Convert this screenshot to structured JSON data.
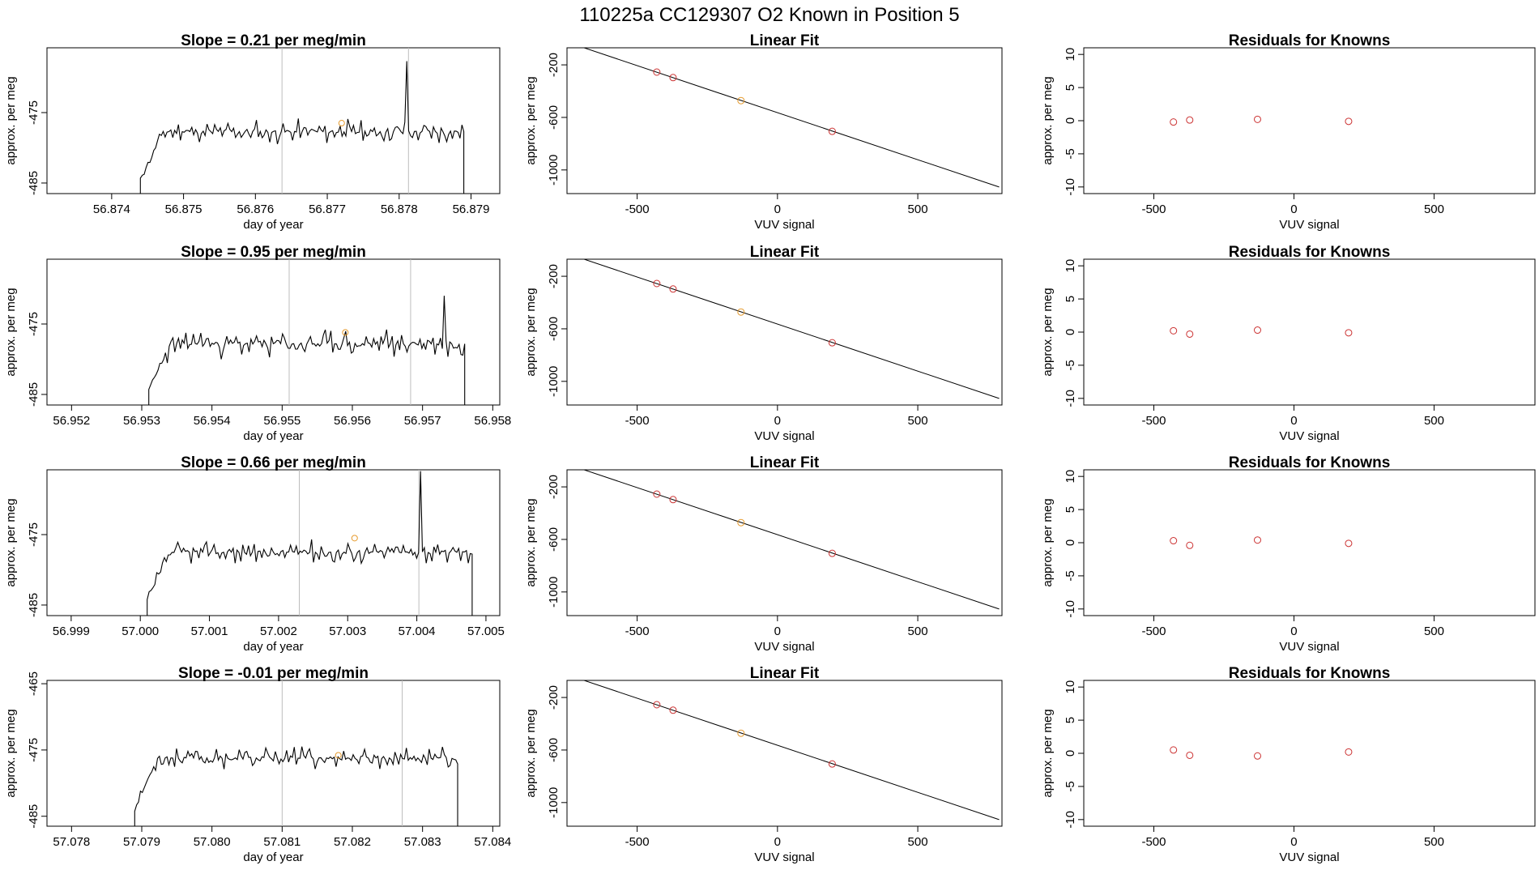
{
  "page_title": "110225a      CC129307    O2 Known in Position  5",
  "colors": {
    "line": "#000000",
    "guide": "#bdbdbd",
    "known": "#cc3333",
    "sample": "#e69b2e"
  },
  "chart_data": [
    {
      "type": "line",
      "panel": "drift",
      "row": 1,
      "title": "Slope =  0.21  per meg/min",
      "xlabel": "day of year",
      "ylabel": "approx. per meg",
      "xlim": [
        56.8731,
        56.8794
      ],
      "ylim": [
        -486.5,
        -465.8
      ],
      "xticks": [
        56.874,
        56.875,
        56.876,
        56.877,
        56.878,
        56.879
      ],
      "xtick_labels": [
        "56.874",
        "56.875",
        "56.876",
        "56.877",
        "56.878",
        "56.879"
      ],
      "yticks": [
        -485,
        -475
      ],
      "ytick_labels": [
        "-485",
        "-475"
      ],
      "x_range": [
        56.8744,
        56.8789
      ],
      "y_base": -477.7,
      "y_amp": 1.6,
      "seed": 11,
      "spikes": [
        [
          56.8781,
          -467.7
        ]
      ],
      "guides_x": [
        56.87637,
        56.87813
      ],
      "highlight": {
        "x": 56.8772,
        "y": -476.5
      }
    },
    {
      "type": "scatter",
      "panel": "fit",
      "row": 1,
      "title": "Linear Fit",
      "xlabel": "VUV signal",
      "ylabel": "approx. per meg",
      "xlim": [
        -750,
        800
      ],
      "ylim": [
        -1180,
        -70
      ],
      "xticks": [
        -500,
        0,
        500
      ],
      "xtick_labels": [
        "-500",
        "0",
        "500"
      ],
      "yticks": [
        -1000,
        -600,
        -200
      ],
      "ytick_labels": [
        "-1000",
        "-600",
        "-200"
      ],
      "line": {
        "x": [
          -745,
          790
        ],
        "y": [
          -30,
          -1130
        ]
      },
      "points": [
        {
          "x": -430,
          "y": -255,
          "kind": "known"
        },
        {
          "x": -372,
          "y": -297,
          "kind": "known"
        },
        {
          "x": -130,
          "y": -472,
          "kind": "sample"
        },
        {
          "x": 195,
          "y": -706,
          "kind": "known"
        }
      ]
    },
    {
      "type": "scatter",
      "panel": "residuals",
      "row": 1,
      "title": "Residuals for Knowns",
      "xlabel": "VUV signal",
      "ylabel": "approx. per meg",
      "xlim": [
        -750,
        860
      ],
      "ylim": [
        -11,
        11
      ],
      "xticks": [
        -500,
        0,
        500
      ],
      "xtick_labels": [
        "-500",
        "0",
        "500"
      ],
      "yticks": [
        -10,
        -5,
        0,
        5,
        10
      ],
      "ytick_labels": [
        "-10",
        "-5",
        "0",
        "5",
        "10"
      ],
      "points": [
        {
          "x": -430,
          "y": -0.2
        },
        {
          "x": -372,
          "y": 0.1
        },
        {
          "x": -130,
          "y": 0.2
        },
        {
          "x": 195,
          "y": -0.1
        }
      ]
    },
    {
      "type": "line",
      "panel": "drift",
      "row": 2,
      "title": "Slope =  0.95  per meg/min",
      "xlabel": "day of year",
      "ylabel": "approx. per meg",
      "xlim": [
        56.95165,
        56.9581
      ],
      "ylim": [
        -486.5,
        -465.8
      ],
      "xticks": [
        56.952,
        56.953,
        56.954,
        56.955,
        56.956,
        56.957,
        56.958
      ],
      "xtick_labels": [
        "56.952",
        "56.953",
        "56.954",
        "56.955",
        "56.956",
        "56.957",
        "56.958"
      ],
      "yticks": [
        -485,
        -475
      ],
      "ytick_labels": [
        "-485",
        "-475"
      ],
      "x_range": [
        56.9531,
        56.9576
      ],
      "y_base": -477.8,
      "y_amp": 1.9,
      "seed": 23,
      "spikes": [
        [
          56.9573,
          -471.0
        ]
      ],
      "guides_x": [
        56.9551,
        56.95683
      ],
      "highlight": {
        "x": 56.9559,
        "y": -476.2
      }
    },
    {
      "type": "scatter",
      "panel": "fit",
      "row": 2,
      "title": "Linear Fit",
      "xlabel": "VUV signal",
      "ylabel": "approx. per meg",
      "xlim": [
        -750,
        800
      ],
      "ylim": [
        -1180,
        -70
      ],
      "xticks": [
        -500,
        0,
        500
      ],
      "xtick_labels": [
        "-500",
        "0",
        "500"
      ],
      "yticks": [
        -1000,
        -600,
        -200
      ],
      "ytick_labels": [
        "-1000",
        "-600",
        "-200"
      ],
      "line": {
        "x": [
          -745,
          790
        ],
        "y": [
          -30,
          -1130
        ]
      },
      "points": [
        {
          "x": -430,
          "y": -255,
          "kind": "known"
        },
        {
          "x": -372,
          "y": -297,
          "kind": "known"
        },
        {
          "x": -130,
          "y": -472,
          "kind": "sample"
        },
        {
          "x": 195,
          "y": -706,
          "kind": "known"
        }
      ]
    },
    {
      "type": "scatter",
      "panel": "residuals",
      "row": 2,
      "title": "Residuals for Knowns",
      "xlabel": "VUV signal",
      "ylabel": "approx. per meg",
      "xlim": [
        -750,
        860
      ],
      "ylim": [
        -11,
        11
      ],
      "xticks": [
        -500,
        0,
        500
      ],
      "xtick_labels": [
        "-500",
        "0",
        "500"
      ],
      "yticks": [
        -10,
        -5,
        0,
        5,
        10
      ],
      "ytick_labels": [
        "-10",
        "-5",
        "0",
        "5",
        "10"
      ],
      "points": [
        {
          "x": -430,
          "y": 0.2
        },
        {
          "x": -372,
          "y": -0.3
        },
        {
          "x": -130,
          "y": 0.3
        },
        {
          "x": 195,
          "y": -0.1
        }
      ]
    },
    {
      "type": "line",
      "panel": "drift",
      "row": 3,
      "title": "Slope =  0.66  per meg/min",
      "xlabel": "day of year",
      "ylabel": "approx. per meg",
      "xlim": [
        56.99865,
        57.0052
      ],
      "ylim": [
        -486.5,
        -465.8
      ],
      "xticks": [
        56.999,
        57.0,
        57.001,
        57.002,
        57.003,
        57.004,
        57.005
      ],
      "xtick_labels": [
        "56.999",
        "57.000",
        "57.001",
        "57.002",
        "57.003",
        "57.004",
        "57.005"
      ],
      "yticks": [
        -485,
        -475
      ],
      "ytick_labels": [
        "-485",
        "-475"
      ],
      "x_range": [
        57.0001,
        57.0048
      ],
      "y_base": -477.5,
      "y_amp": 1.7,
      "seed": 37,
      "spikes": [
        [
          57.00405,
          -466.0
        ]
      ],
      "guides_x": [
        57.0023,
        57.00403
      ],
      "highlight": {
        "x": 57.0031,
        "y": -475.5
      }
    },
    {
      "type": "scatter",
      "panel": "fit",
      "row": 3,
      "title": "Linear Fit",
      "xlabel": "VUV signal",
      "ylabel": "approx. per meg",
      "xlim": [
        -750,
        800
      ],
      "ylim": [
        -1180,
        -70
      ],
      "xticks": [
        -500,
        0,
        500
      ],
      "xtick_labels": [
        "-500",
        "0",
        "500"
      ],
      "yticks": [
        -1000,
        -600,
        -200
      ],
      "ytick_labels": [
        "-1000",
        "-600",
        "-200"
      ],
      "line": {
        "x": [
          -745,
          790
        ],
        "y": [
          -30,
          -1130
        ]
      },
      "points": [
        {
          "x": -430,
          "y": -255,
          "kind": "known"
        },
        {
          "x": -372,
          "y": -297,
          "kind": "known"
        },
        {
          "x": -130,
          "y": -472,
          "kind": "sample"
        },
        {
          "x": 195,
          "y": -706,
          "kind": "known"
        }
      ]
    },
    {
      "type": "scatter",
      "panel": "residuals",
      "row": 3,
      "title": "Residuals for Knowns",
      "xlabel": "VUV signal",
      "ylabel": "approx. per meg",
      "xlim": [
        -750,
        860
      ],
      "ylim": [
        -11,
        11
      ],
      "xticks": [
        -500,
        0,
        500
      ],
      "xtick_labels": [
        "-500",
        "0",
        "500"
      ],
      "yticks": [
        -10,
        -5,
        0,
        5,
        10
      ],
      "ytick_labels": [
        "-10",
        "-5",
        "0",
        "5",
        "10"
      ],
      "points": [
        {
          "x": -430,
          "y": 0.3
        },
        {
          "x": -372,
          "y": -0.4
        },
        {
          "x": -130,
          "y": 0.4
        },
        {
          "x": 195,
          "y": -0.1
        }
      ]
    },
    {
      "type": "line",
      "panel": "drift",
      "row": 4,
      "title": "Slope =  -0.01  per meg/min",
      "xlabel": "day of year",
      "ylabel": "approx. per meg",
      "xlim": [
        57.07765,
        57.0841
      ],
      "ylim": [
        -486.5,
        -464.5
      ],
      "xticks": [
        57.078,
        57.079,
        57.08,
        57.081,
        57.082,
        57.083,
        57.084
      ],
      "xtick_labels": [
        "57.078",
        "57.079",
        "57.080",
        "57.081",
        "57.082",
        "57.083",
        "57.084"
      ],
      "yticks": [
        -485,
        -475,
        -465
      ],
      "ytick_labels": [
        "-485",
        "-475",
        "-465"
      ],
      "x_range": [
        57.0789,
        57.0835
      ],
      "y_base": -476.2,
      "y_amp": 1.6,
      "seed": 53,
      "spikes": [],
      "guides_x": [
        57.081,
        57.08271
      ],
      "highlight": {
        "x": 57.0818,
        "y": -475.8
      }
    },
    {
      "type": "scatter",
      "panel": "fit",
      "row": 4,
      "title": "Linear Fit",
      "xlabel": "VUV signal",
      "ylabel": "approx. per meg",
      "xlim": [
        -750,
        800
      ],
      "ylim": [
        -1180,
        -70
      ],
      "xticks": [
        -500,
        0,
        500
      ],
      "xtick_labels": [
        "-500",
        "0",
        "500"
      ],
      "yticks": [
        -1000,
        -600,
        -200
      ],
      "ytick_labels": [
        "-1000",
        "-600",
        "-200"
      ],
      "line": {
        "x": [
          -745,
          790
        ],
        "y": [
          -30,
          -1130
        ]
      },
      "points": [
        {
          "x": -430,
          "y": -255,
          "kind": "known"
        },
        {
          "x": -372,
          "y": -297,
          "kind": "known"
        },
        {
          "x": -130,
          "y": -472,
          "kind": "sample"
        },
        {
          "x": 195,
          "y": -706,
          "kind": "known"
        }
      ]
    },
    {
      "type": "scatter",
      "panel": "residuals",
      "row": 4,
      "title": "Residuals for Knowns",
      "xlabel": "VUV signal",
      "ylabel": "approx. per meg",
      "xlim": [
        -750,
        860
      ],
      "ylim": [
        -11,
        11
      ],
      "xticks": [
        -500,
        0,
        500
      ],
      "xtick_labels": [
        "-500",
        "0",
        "500"
      ],
      "yticks": [
        -10,
        -5,
        0,
        5,
        10
      ],
      "ytick_labels": [
        "-10",
        "-5",
        "0",
        "5",
        "10"
      ],
      "points": [
        {
          "x": -430,
          "y": 0.5
        },
        {
          "x": -372,
          "y": -0.3
        },
        {
          "x": -130,
          "y": -0.4
        },
        {
          "x": 195,
          "y": 0.2
        }
      ]
    }
  ]
}
